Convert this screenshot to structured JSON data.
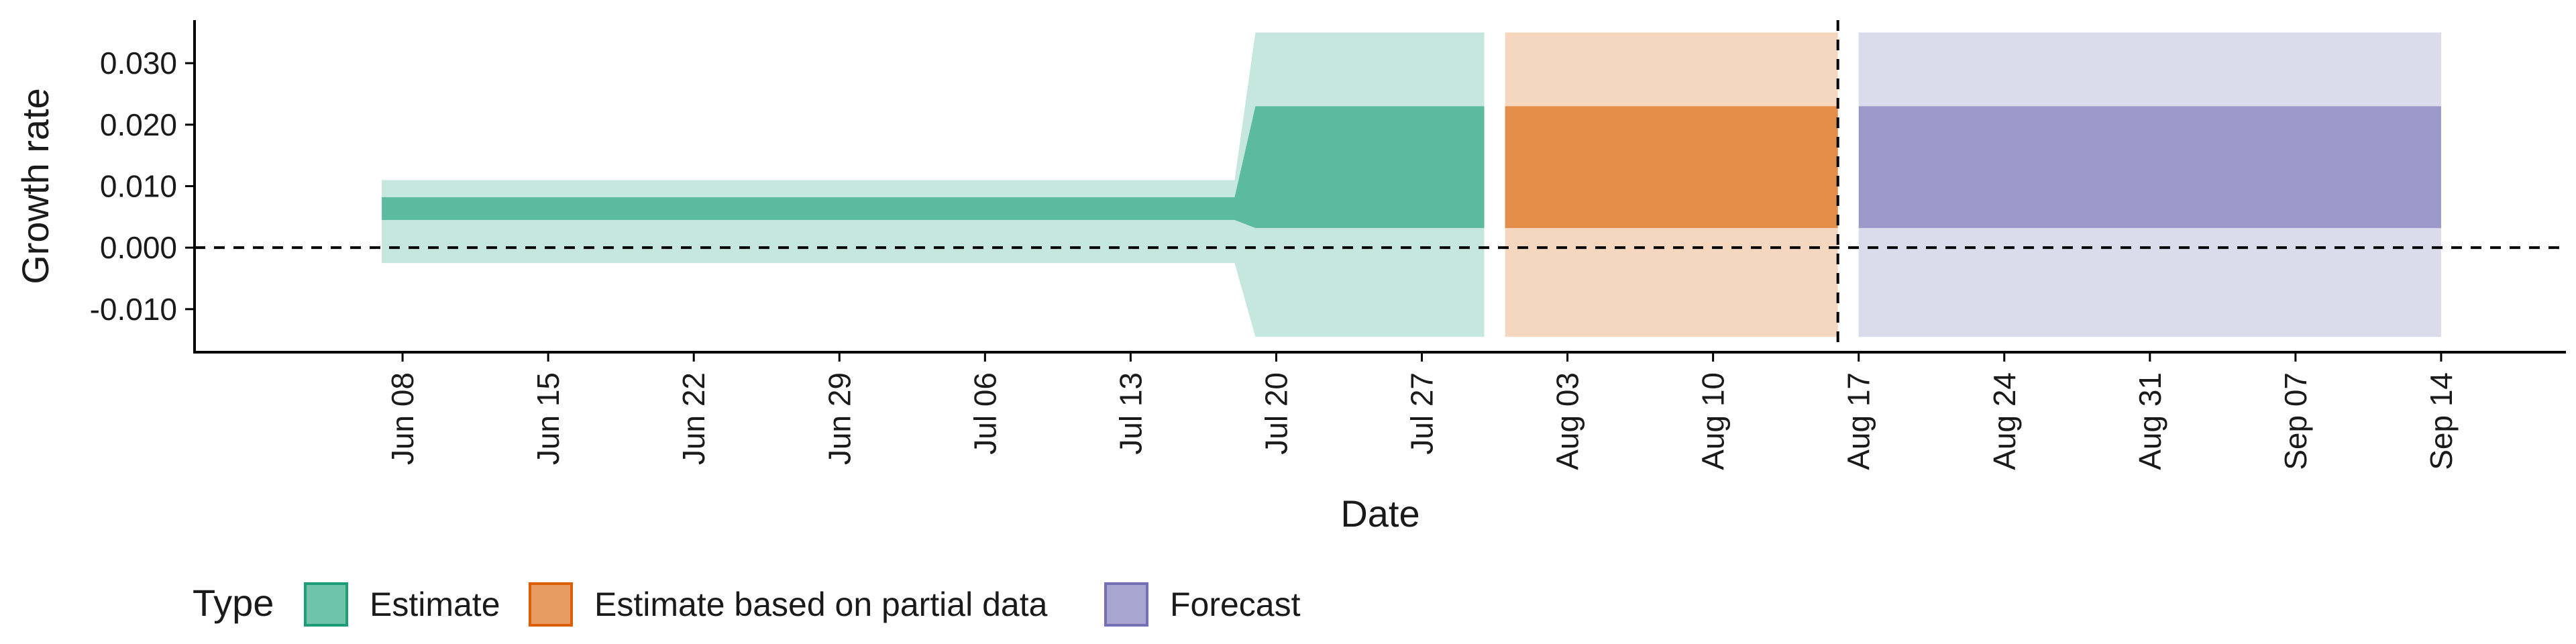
{
  "chart_data": {
    "type": "area",
    "xlabel": "Date",
    "ylabel": "Growth rate",
    "x_range": [
      "2020-05-29",
      "2020-09-20"
    ],
    "ylim": [
      -0.017,
      0.037
    ],
    "y_ticks": [
      0.03,
      0.02,
      0.01,
      0.0,
      -0.01
    ],
    "y_tick_labels": [
      "0.030",
      "0.020",
      "0.010",
      "0.000",
      "-0.010"
    ],
    "x_ticks": [
      "2020-06-08",
      "2020-06-15",
      "2020-06-22",
      "2020-06-29",
      "2020-07-06",
      "2020-07-13",
      "2020-07-20",
      "2020-07-27",
      "2020-08-03",
      "2020-08-10",
      "2020-08-17",
      "2020-08-24",
      "2020-08-31",
      "2020-09-07",
      "2020-09-14"
    ],
    "x_tick_labels": [
      "Jun 08",
      "Jun 15",
      "Jun 22",
      "Jun 29",
      "Jul 06",
      "Jul 13",
      "Jul 20",
      "Jul 27",
      "Aug 03",
      "Aug 10",
      "Aug 17",
      "Aug 24",
      "Aug 31",
      "Sep 07",
      "Sep 14"
    ],
    "hline": 0.0,
    "vline": "2020-08-16",
    "legend": {
      "title": "Type",
      "position": "bottom",
      "entries": [
        {
          "label": "Estimate",
          "fill": "#6fc3a9",
          "stroke": "#1b9e77"
        },
        {
          "label": "Estimate based on partial data",
          "fill": "#e89b60",
          "stroke": "#d95f02"
        },
        {
          "label": "Forecast",
          "fill": "#a8a5d0",
          "stroke": "#7570b3"
        }
      ]
    },
    "series": [
      {
        "name": "Estimate",
        "color": "#1b9e77",
        "x": [
          "2020-06-07",
          "2020-07-18",
          "2020-07-19",
          "2020-07-30"
        ],
        "lower_90": [
          -0.0025,
          -0.0025,
          -0.0145,
          -0.0145
        ],
        "upper_90": [
          0.011,
          0.011,
          0.035,
          0.035
        ],
        "lower_50": [
          0.0045,
          0.0045,
          0.0032,
          0.0032
        ],
        "upper_50": [
          0.0082,
          0.0082,
          0.023,
          0.023
        ]
      },
      {
        "name": "Estimate based on partial data",
        "color": "#d95f02",
        "x": [
          "2020-07-31",
          "2020-08-16"
        ],
        "lower_90": [
          -0.0145,
          -0.0145
        ],
        "upper_90": [
          0.035,
          0.035
        ],
        "lower_50": [
          0.0032,
          0.0032
        ],
        "upper_50": [
          0.023,
          0.023
        ]
      },
      {
        "name": "Forecast",
        "color": "#7570b3",
        "x": [
          "2020-08-17",
          "2020-09-14"
        ],
        "lower_90": [
          -0.0145,
          -0.0145
        ],
        "upper_90": [
          0.035,
          0.035
        ],
        "lower_50": [
          0.0032,
          0.0032
        ],
        "upper_50": [
          0.023,
          0.023
        ]
      }
    ]
  }
}
